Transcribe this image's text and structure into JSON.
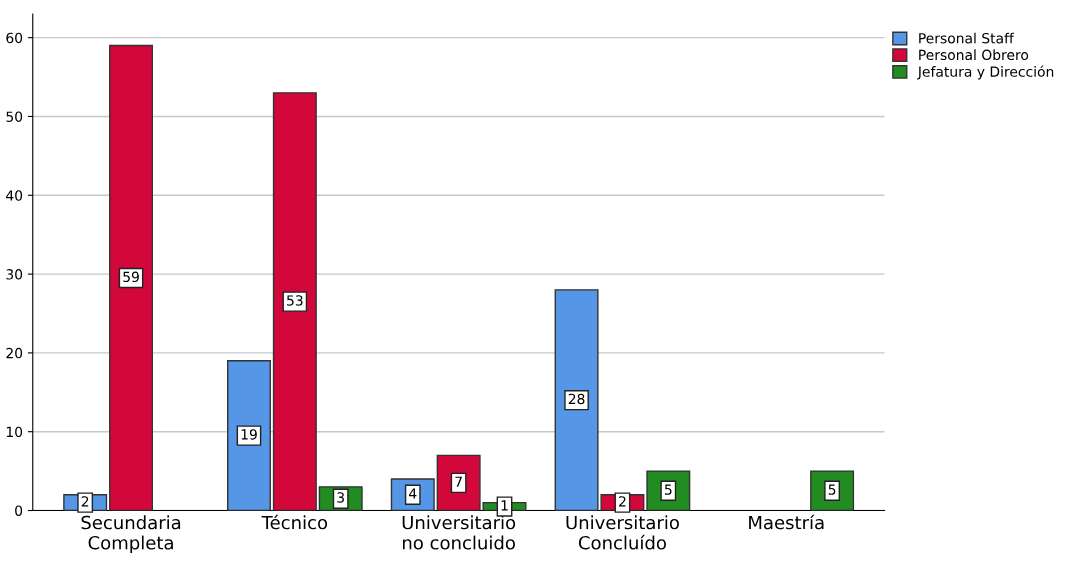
{
  "chart_data": {
    "type": "bar",
    "categories": [
      "Secundaria\nCompleta",
      "Técnico",
      "Universitario\nno concluido",
      "Universitario\nConcluído",
      "Maestría"
    ],
    "series": [
      {
        "name": "Personal Staff",
        "color": "#5596e6",
        "values": [
          2,
          19,
          4,
          28,
          null
        ]
      },
      {
        "name": "Personal Obrero",
        "color": "#d2073a",
        "values": [
          59,
          53,
          7,
          2,
          null
        ]
      },
      {
        "name": "Jefatura y Dirección",
        "color": "#228b22",
        "values": [
          null,
          3,
          1,
          5,
          5
        ]
      }
    ],
    "ylim": [
      0,
      63
    ],
    "yticks": [
      0,
      10,
      20,
      30,
      40,
      50,
      60
    ],
    "grid": "y",
    "legend": "top right",
    "data_labels": true
  }
}
